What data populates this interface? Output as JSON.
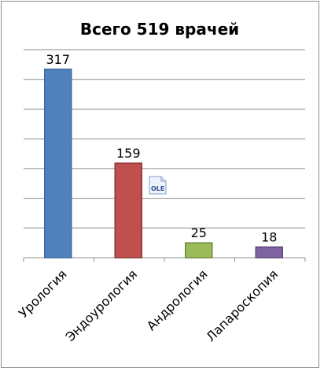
{
  "chart_data": {
    "type": "bar",
    "title": "Всего 519 врачей",
    "categories": [
      "Урология",
      "Эндоурология",
      "Андрология",
      "Лапароскопия"
    ],
    "values": [
      317,
      159,
      25,
      18
    ],
    "data_labels": [
      "317",
      "159",
      "25",
      "18"
    ],
    "colors": [
      "#4f81bd",
      "#c0504d",
      "#9bbb59",
      "#8064a2"
    ],
    "border_colors": [
      "#3b6aa0",
      "#8e3431",
      "#6f8a3c",
      "#5c4878"
    ],
    "ylim": [
      0,
      350
    ],
    "grid": true,
    "legend": "none"
  },
  "ole_icon": {
    "label": "OLE",
    "icon": "ole-object-icon"
  }
}
